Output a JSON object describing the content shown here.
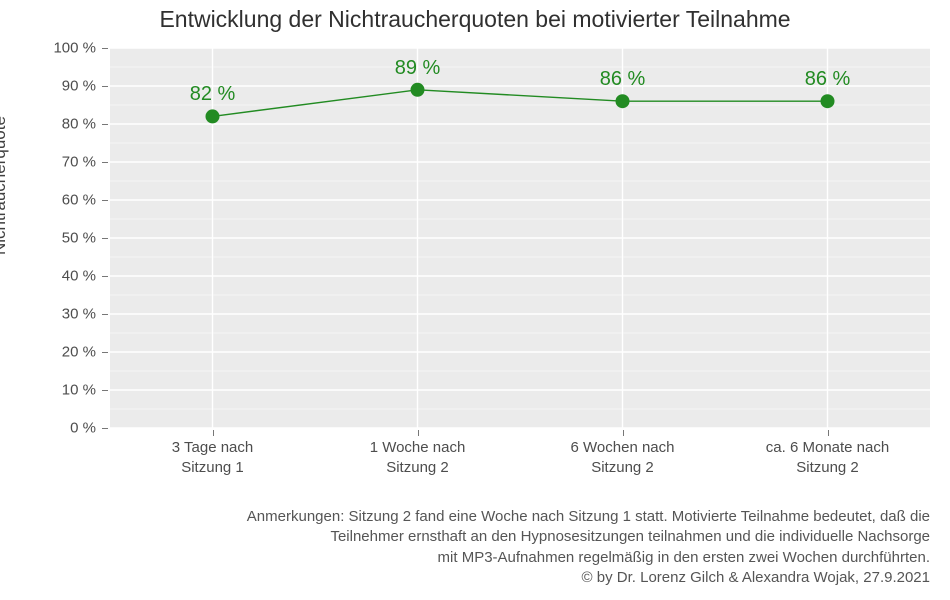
{
  "chart": {
    "type": "line",
    "title": "Entwicklung der Nichtraucherquoten bei motivierter Teilnahme",
    "ylabel": "Nichtraucherquote",
    "title_fontsize": 23,
    "label_fontsize": 17,
    "tick_fontsize": 15,
    "point_label_fontsize": 20,
    "background_color": "#ffffff",
    "panel_color": "#ebebeb",
    "grid_major_color": "#ffffff",
    "grid_minor_color": "#f4f4f4",
    "line_color": "#228b22",
    "point_fill_color": "#228b22",
    "text_color": "#404040",
    "point_label_color": "#228b22",
    "line_width": 1.4,
    "point_radius": 7,
    "ylim": [
      0,
      100
    ],
    "ytick_step": 10,
    "yminor_step": 5,
    "ytick_labels": [
      "0 %",
      "10 %",
      "20 %",
      "30 %",
      "40 %",
      "50 %",
      "60 %",
      "70 %",
      "80 %",
      "90 %",
      "100 %"
    ],
    "categories": [
      "3 Tage nach\nSitzung 1",
      "1 Woche nach\nSitzung 2",
      "6 Wochen nach\nSitzung 2",
      "ca. 6 Monate nach\nSitzung 2"
    ],
    "values": [
      82,
      89,
      86,
      86
    ],
    "value_labels": [
      "82 %",
      "89 %",
      "86 %",
      "86 %"
    ]
  },
  "caption": {
    "line1": "Anmerkungen: Sitzung 2 fand eine Woche nach Sitzung 1 statt. Motivierte Teilnahme bedeutet, daß die",
    "line2": "Teilnehmer ernsthaft an den Hypnosesitzungen teilnahmen und die individuelle Nachsorge",
    "line3": "mit MP3-Aufnahmen regelmäßig in den ersten zwei Wochen durchführten.",
    "line4": "© by Dr. Lorenz Gilch & Alexandra Wojak, 27.9.2021"
  }
}
